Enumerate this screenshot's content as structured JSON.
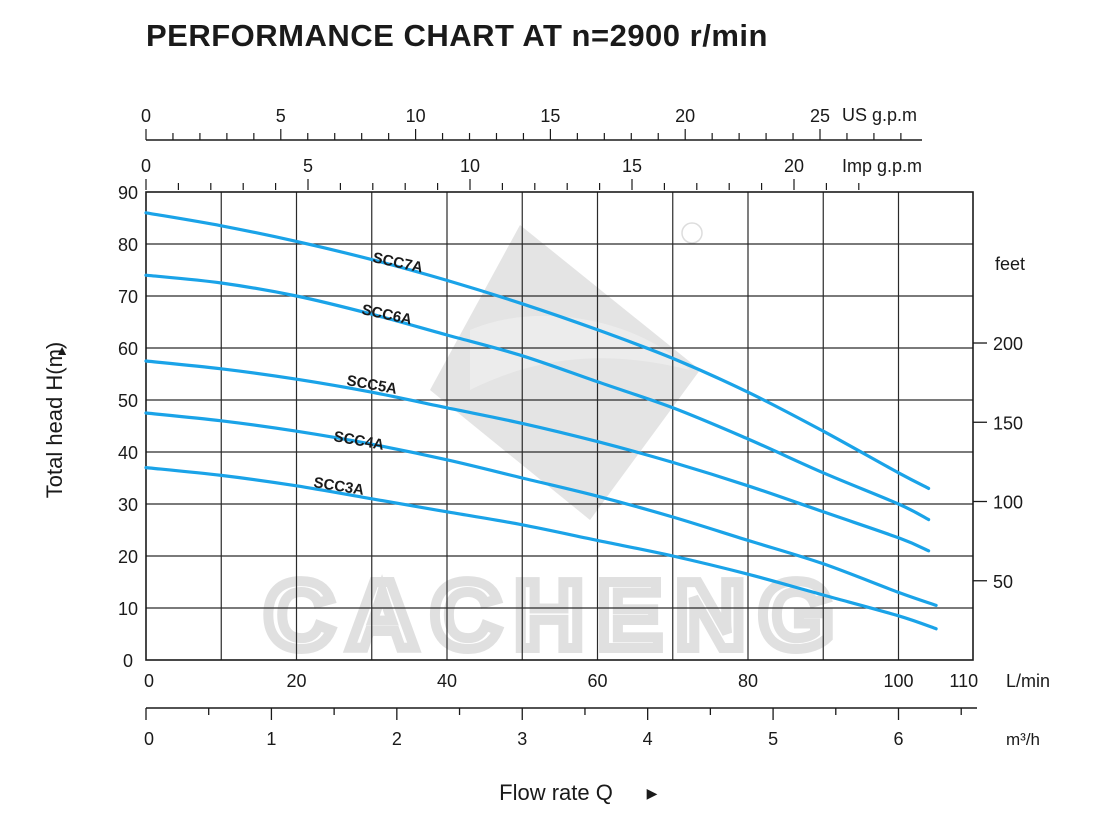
{
  "chart_data": {
    "type": "line",
    "title": "PERFORMANCE CHART AT n=2900 r/min",
    "ylabel": "Total  head H(m)",
    "ylabel_arrow": "▲",
    "xlabel": "Flow rate Q",
    "xlabel_arrow": "▶",
    "xlim": [
      0,
      110
    ],
    "ylim": [
      0,
      90
    ],
    "grid": true,
    "x_unit": "L/min",
    "x_ticks": [
      0,
      20,
      40,
      60,
      80,
      100,
      110
    ],
    "y_ticks": [
      0,
      10,
      20,
      30,
      40,
      50,
      60,
      70,
      80,
      90
    ],
    "secondary_axes": {
      "us_gpm": {
        "unit": "US g.p.m",
        "ticks": [
          0,
          5,
          10,
          15,
          20,
          25
        ]
      },
      "imp_gpm": {
        "unit": "Imp g.p.m",
        "ticks": [
          0,
          5,
          10,
          15,
          20
        ]
      },
      "m3h": {
        "unit": "m³/h",
        "ticks": [
          0,
          1,
          2,
          3,
          4,
          5,
          6
        ]
      },
      "feet": {
        "unit": "feet",
        "ticks": [
          50,
          100,
          150,
          200
        ]
      }
    },
    "series": [
      {
        "name": "SCC7A",
        "color": "#1aa3e8",
        "x": [
          0,
          10,
          20,
          30,
          40,
          50,
          60,
          70,
          80,
          90,
          100,
          104
        ],
        "y": [
          86,
          83.5,
          80.5,
          77,
          73,
          68.5,
          63.5,
          58,
          51.5,
          44,
          36,
          33
        ]
      },
      {
        "name": "SCC6A",
        "color": "#1aa3e8",
        "x": [
          0,
          10,
          20,
          30,
          40,
          50,
          60,
          70,
          80,
          90,
          100,
          104
        ],
        "y": [
          74,
          72.5,
          70,
          66.5,
          62.5,
          58.5,
          53.5,
          48.5,
          42.5,
          36,
          30,
          27
        ]
      },
      {
        "name": "SCC5A",
        "color": "#1aa3e8",
        "x": [
          0,
          10,
          20,
          30,
          40,
          50,
          60,
          70,
          80,
          90,
          100,
          104
        ],
        "y": [
          57.5,
          56,
          54,
          51.5,
          48.5,
          45.5,
          42,
          38,
          33.5,
          28.5,
          23.5,
          21
        ]
      },
      {
        "name": "SCC4A",
        "color": "#1aa3e8",
        "x": [
          0,
          10,
          20,
          30,
          40,
          50,
          60,
          70,
          80,
          90,
          100,
          105
        ],
        "y": [
          47.5,
          46,
          44,
          41.5,
          38.5,
          35,
          31.5,
          27.5,
          23,
          18.5,
          13,
          10.5
        ]
      },
      {
        "name": "SCC3A",
        "color": "#1aa3e8",
        "x": [
          0,
          10,
          20,
          30,
          40,
          50,
          60,
          70,
          80,
          90,
          100,
          105
        ],
        "y": [
          37,
          35.5,
          33.5,
          31,
          28.5,
          26,
          23,
          20,
          16.5,
          12.5,
          8.5,
          6
        ]
      }
    ],
    "watermark": "CACHENG"
  }
}
